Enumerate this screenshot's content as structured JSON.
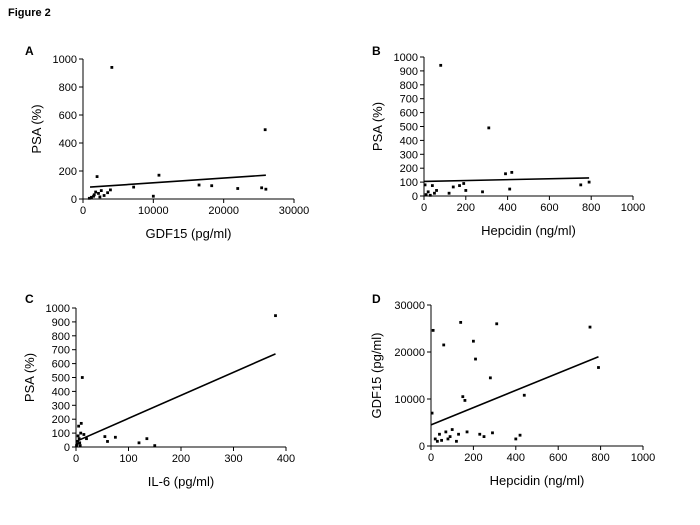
{
  "figure_title": "Figure 2",
  "chart_data": [
    {
      "panel": "A",
      "type": "scatter",
      "xlabel": "GDF15 (pg/ml)",
      "ylabel": "PSA (%)",
      "xlim": [
        0,
        30000
      ],
      "ylim": [
        0,
        1000
      ],
      "xticks": [
        0,
        10000,
        20000,
        30000
      ],
      "yticks": [
        0,
        200,
        400,
        600,
        800,
        1000
      ],
      "trendline": [
        [
          1000,
          85
        ],
        [
          26000,
          170
        ]
      ],
      "points": [
        [
          900,
          5
        ],
        [
          1200,
          12
        ],
        [
          1500,
          20
        ],
        [
          1600,
          30
        ],
        [
          1800,
          50
        ],
        [
          2000,
          160
        ],
        [
          2200,
          40
        ],
        [
          2400,
          15
        ],
        [
          2600,
          60
        ],
        [
          3000,
          25
        ],
        [
          3500,
          45
        ],
        [
          3900,
          65
        ],
        [
          4100,
          940
        ],
        [
          7200,
          85
        ],
        [
          10000,
          20
        ],
        [
          10800,
          170
        ],
        [
          16500,
          100
        ],
        [
          18300,
          95
        ],
        [
          22000,
          75
        ],
        [
          25400,
          80
        ],
        [
          25900,
          495
        ],
        [
          26000,
          70
        ]
      ]
    },
    {
      "panel": "B",
      "type": "scatter",
      "xlabel": "Hepcidin (ng/ml)",
      "ylabel": "PSA (%)",
      "xlim": [
        0,
        1000
      ],
      "ylim": [
        0,
        1000
      ],
      "xticks": [
        0,
        200,
        400,
        600,
        800,
        1000
      ],
      "yticks": [
        0,
        100,
        200,
        300,
        400,
        500,
        600,
        700,
        800,
        900,
        1000
      ],
      "trendline": [
        [
          0,
          105
        ],
        [
          790,
          130
        ]
      ],
      "points": [
        [
          5,
          80
        ],
        [
          10,
          10
        ],
        [
          20,
          30
        ],
        [
          30,
          5
        ],
        [
          40,
          75
        ],
        [
          50,
          20
        ],
        [
          60,
          40
        ],
        [
          80,
          940
        ],
        [
          120,
          20
        ],
        [
          140,
          65
        ],
        [
          170,
          75
        ],
        [
          190,
          90
        ],
        [
          200,
          40
        ],
        [
          280,
          30
        ],
        [
          310,
          490
        ],
        [
          390,
          160
        ],
        [
          420,
          170
        ],
        [
          410,
          50
        ],
        [
          750,
          80
        ],
        [
          790,
          100
        ]
      ]
    },
    {
      "panel": "C",
      "type": "scatter",
      "xlabel": "IL-6 (pg/ml)",
      "ylabel": "PSA (%)",
      "xlim": [
        0,
        400
      ],
      "ylim": [
        0,
        1000
      ],
      "xticks": [
        0,
        100,
        200,
        300,
        400
      ],
      "yticks": [
        0,
        100,
        200,
        300,
        400,
        500,
        600,
        700,
        800,
        900,
        1000
      ],
      "trendline": [
        [
          0,
          40
        ],
        [
          380,
          670
        ]
      ],
      "points": [
        [
          1,
          10
        ],
        [
          2,
          20
        ],
        [
          3,
          40
        ],
        [
          4,
          80
        ],
        [
          5,
          150
        ],
        [
          6,
          60
        ],
        [
          7,
          30
        ],
        [
          8,
          10
        ],
        [
          9,
          100
        ],
        [
          10,
          170
        ],
        [
          12,
          500
        ],
        [
          15,
          90
        ],
        [
          20,
          60
        ],
        [
          55,
          75
        ],
        [
          60,
          40
        ],
        [
          75,
          70
        ],
        [
          120,
          30
        ],
        [
          135,
          60
        ],
        [
          150,
          10
        ],
        [
          380,
          945
        ]
      ]
    },
    {
      "panel": "D",
      "type": "scatter",
      "xlabel": "Hepcidin (ng/ml)",
      "ylabel": "GDF15 (pg/ml)",
      "xlim": [
        0,
        1000
      ],
      "ylim": [
        0,
        30000
      ],
      "xticks": [
        0,
        200,
        400,
        600,
        800,
        1000
      ],
      "yticks": [
        0,
        10000,
        20000,
        30000
      ],
      "trendline": [
        [
          0,
          4500
        ],
        [
          790,
          19000
        ]
      ],
      "points": [
        [
          5,
          7000
        ],
        [
          10,
          24600
        ],
        [
          20,
          1500
        ],
        [
          30,
          1000
        ],
        [
          40,
          2500
        ],
        [
          50,
          1200
        ],
        [
          60,
          21500
        ],
        [
          70,
          3000
        ],
        [
          80,
          1500
        ],
        [
          90,
          2000
        ],
        [
          100,
          3500
        ],
        [
          120,
          1000
        ],
        [
          130,
          2500
        ],
        [
          140,
          26300
        ],
        [
          150,
          10500
        ],
        [
          160,
          9700
        ],
        [
          170,
          3000
        ],
        [
          200,
          22300
        ],
        [
          210,
          18500
        ],
        [
          230,
          2500
        ],
        [
          250,
          2000
        ],
        [
          280,
          14500
        ],
        [
          290,
          2800
        ],
        [
          310,
          26000
        ],
        [
          400,
          1500
        ],
        [
          420,
          2300
        ],
        [
          440,
          10800
        ],
        [
          750,
          25300
        ],
        [
          790,
          16700
        ]
      ]
    }
  ]
}
